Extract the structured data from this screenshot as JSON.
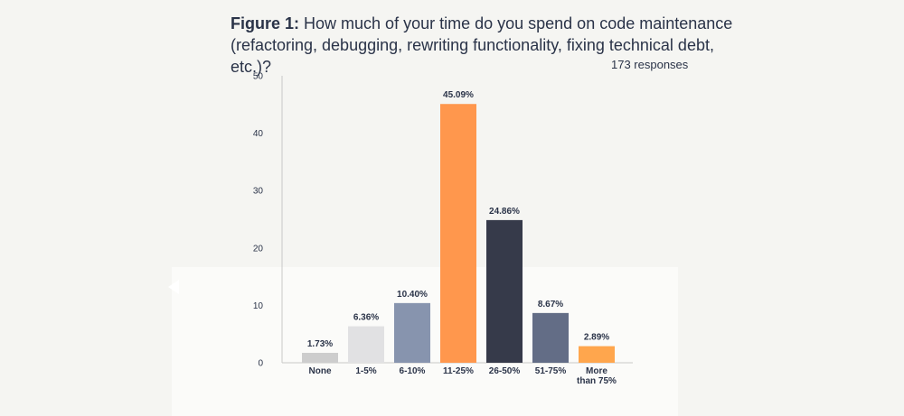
{
  "header": {
    "title_bold": "Figure 1:",
    "title_line1": "How much of your time do you spend on code maintenance",
    "title_line2": "(refactoring, debugging, rewriting functionality, fixing technical debt, etc.)?",
    "responses": "173 responses"
  },
  "chart_data": {
    "type": "bar",
    "categories": [
      "None",
      "1-5%",
      "6-10%",
      "11-25%",
      "26-50%",
      "51-75%",
      "More than 75%"
    ],
    "category_lines": [
      [
        "None"
      ],
      [
        "1-5%"
      ],
      [
        "6-10%"
      ],
      [
        "11-25%"
      ],
      [
        "26-50%"
      ],
      [
        "51-75%"
      ],
      [
        "More",
        "than 75%"
      ]
    ],
    "values": [
      1.73,
      6.36,
      10.4,
      45.09,
      24.86,
      8.67,
      2.89
    ],
    "value_labels": [
      "1.73%",
      "6.36%",
      "10.40%",
      "45.09%",
      "24.86%",
      "8.67%",
      "2.89%"
    ],
    "colors": [
      "#cdcdcd",
      "#e1e1e3",
      "#8794ae",
      "#ff974d",
      "#363a4a",
      "#636d86",
      "#ffa64d"
    ],
    "ylim": [
      0,
      50
    ],
    "yticks": [
      0,
      10,
      20,
      30,
      40,
      50
    ],
    "grid": false,
    "title": "How much of your time do you spend on code maintenance (refactoring, debugging, rewriting functionality, fixing technical debt, etc.)?",
    "xlabel": "",
    "ylabel": ""
  }
}
